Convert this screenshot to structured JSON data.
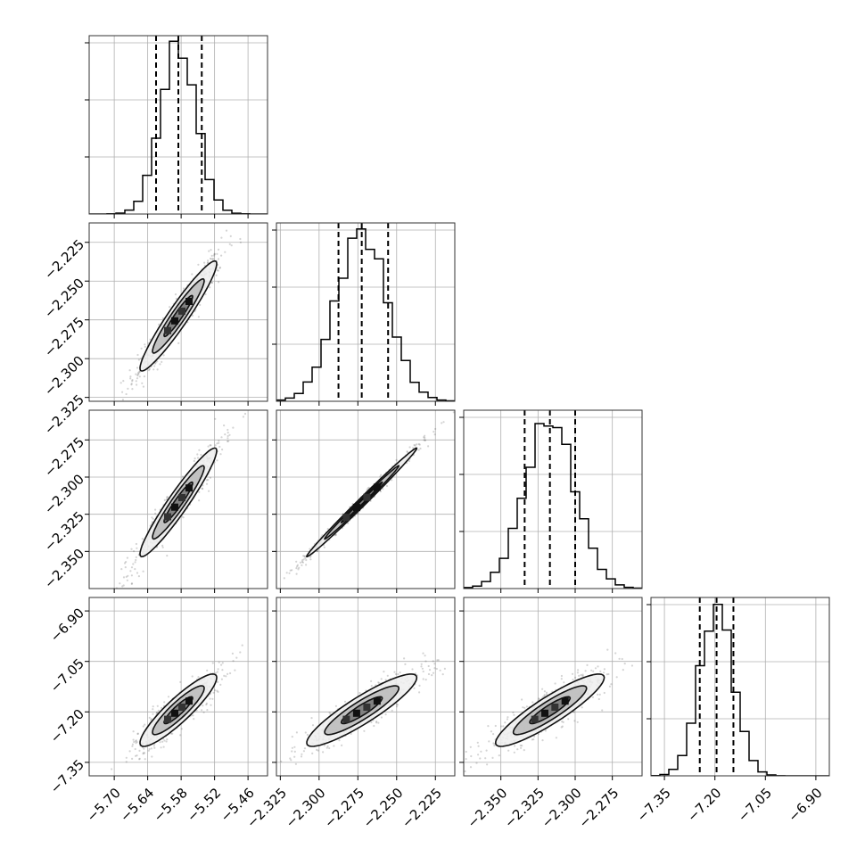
{
  "chart_data": {
    "type": "corner",
    "n_params": 4,
    "grid": true,
    "colors": {
      "hist": "#000000",
      "quantile": "#000000",
      "scatter": "#555555",
      "contour_fill": "#bdbdbd",
      "contour_dark": "#111111"
    },
    "params": [
      {
        "range": [
          -5.745,
          -5.425
        ],
        "ticks": [
          -5.7,
          -5.64,
          -5.58,
          -5.52,
          -5.46
        ],
        "tick_labels": [
          "−5.70",
          "−5.64",
          "−5.58",
          "−5.52",
          "−5.46"
        ],
        "quantiles": [
          -5.625,
          -5.585,
          -5.543
        ],
        "median": -5.585,
        "sigma": 0.032
      },
      {
        "range": [
          -2.3275,
          -2.2125
        ],
        "ticks": [
          -2.325,
          -2.3,
          -2.275,
          -2.25,
          -2.225
        ],
        "tick_labels": [
          "−2.325",
          "−2.300",
          "−2.275",
          "−2.250",
          "−2.225"
        ],
        "quantiles": [
          -2.2875,
          -2.2725,
          -2.2555
        ],
        "median": -2.2725,
        "sigma": 0.0165
      },
      {
        "range": [
          -2.375,
          -2.255
        ],
        "ticks": [
          -2.35,
          -2.325,
          -2.3,
          -2.275
        ],
        "tick_labels": [
          "−2.350",
          "−2.325",
          "−2.300",
          "−2.275"
        ],
        "quantiles": [
          -2.334,
          -2.317,
          -2.3
        ],
        "median": -2.317,
        "sigma": 0.017
      },
      {
        "range": [
          -7.39,
          -6.86
        ],
        "ticks": [
          -7.35,
          -7.2,
          -7.05,
          -6.9
        ],
        "tick_labels": [
          "−7.35",
          "−7.20",
          "−7.05",
          "−6.90"
        ],
        "quantiles": [
          -7.245,
          -7.195,
          -7.145
        ],
        "median": -7.195,
        "sigma": 0.05
      }
    ],
    "correlations": [
      [
        1,
        0.95,
        0.95,
        0.9
      ],
      [
        0.95,
        1,
        0.995,
        0.9
      ],
      [
        0.95,
        0.995,
        1,
        0.9
      ],
      [
        0.9,
        0.9,
        0.9,
        1
      ]
    ]
  }
}
